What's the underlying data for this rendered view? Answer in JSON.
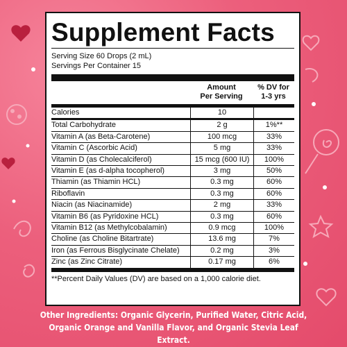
{
  "label": {
    "title": "Supplement Facts",
    "serving_size": "Serving Size 60 Drops (2 mL)",
    "servings_per_container": "Servings Per Container 15",
    "header": {
      "amount_line1": "Amount",
      "amount_line2": "Per Serving",
      "dv_line1": "% DV for",
      "dv_line2": "1-3 yrs"
    },
    "rows": [
      {
        "name": "Calories",
        "amount": "10",
        "dv": ""
      },
      {
        "name": "Total Carbohydrate",
        "amount": "2 g",
        "dv": "1%**"
      },
      {
        "name": "Vitamin A (as Beta-Carotene)",
        "amount": "100 mcg",
        "dv": "33%"
      },
      {
        "name": "Vitamin C (Ascorbic Acid)",
        "amount": "5 mg",
        "dv": "33%"
      },
      {
        "name": "Vitamin D (as Cholecalciferol)",
        "amount": "15 mcg (600 IU)",
        "dv": "100%"
      },
      {
        "name": "Vitamin E (as d-alpha tocopherol)",
        "amount": "3 mg",
        "dv": "50%"
      },
      {
        "name": "Thiamin (as Thiamin HCL)",
        "amount": "0.3 mg",
        "dv": "60%"
      },
      {
        "name": "Riboflavin",
        "amount": "0.3 mg",
        "dv": "60%"
      },
      {
        "name": "Niacin (as Niacinamide)",
        "amount": "2 mg",
        "dv": "33%"
      },
      {
        "name": "Vitamin B6 (as Pyridoxine HCL)",
        "amount": "0.3 mg",
        "dv": "60%"
      },
      {
        "name": "Vitamin B12 (as Methylcobalamin)",
        "amount": "0.9 mcg",
        "dv": "100%"
      },
      {
        "name": "Choline (as Choline Bitartrate)",
        "amount": "13.6 mg",
        "dv": "7%"
      },
      {
        "name": "Iron (as Ferrous Bisglycinate Chelate)",
        "amount": "0.2 mg",
        "dv": "3%"
      },
      {
        "name": "Zinc (as Zinc Citrate)",
        "amount": "0.17 mg",
        "dv": "6%"
      }
    ],
    "footnote": "**Percent Daily Values (DV) are based on a 1,000 calorie diet."
  },
  "other_ingredients": "Other Ingredients: Organic Glycerin, Purified Water, Citric Acid, Organic Orange and Vanilla Flavor, and Organic Stevia Leaf Extract.",
  "colors": {
    "background": "#e44b6b",
    "panel": "#ffffff",
    "text": "#111111",
    "decor": "#f7a9b9"
  },
  "icons": [
    "heart-icon",
    "lollipop-icon",
    "star-icon",
    "ladybug-icon",
    "swirl-icon",
    "dot-icon"
  ]
}
